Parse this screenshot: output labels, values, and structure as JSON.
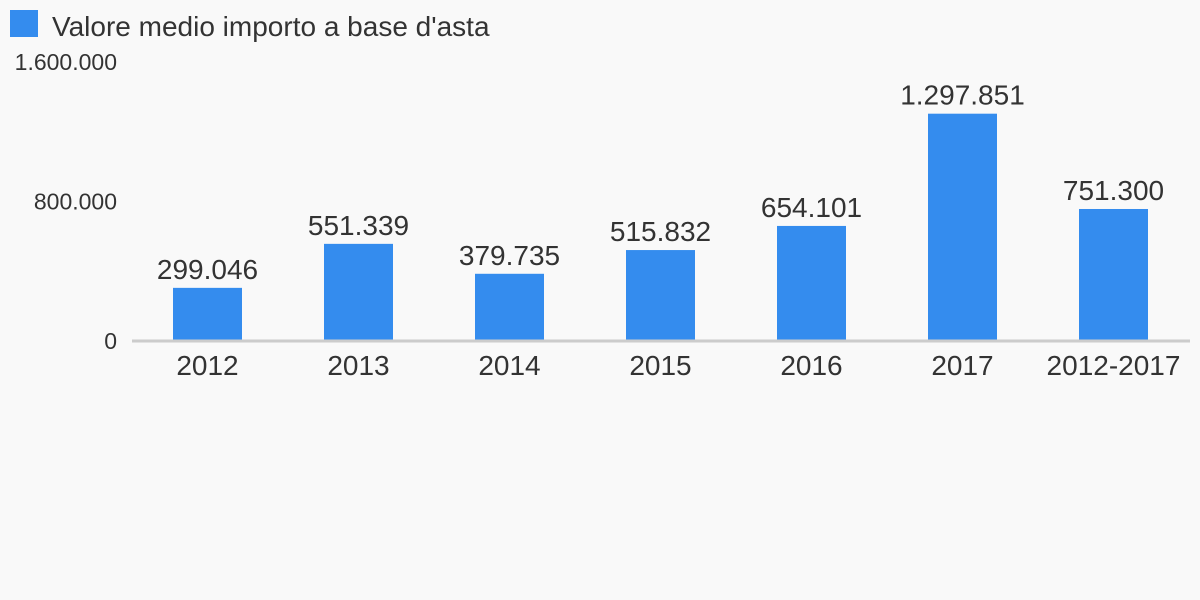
{
  "chart_data": {
    "type": "bar",
    "categories": [
      "2012",
      "2013",
      "2014",
      "2015",
      "2016",
      "2017",
      "2012-2017"
    ],
    "series": [
      {
        "name": "Valore medio importo a base d'asta",
        "values": [
          299046,
          551339,
          379735,
          515832,
          654101,
          1297851,
          751300
        ],
        "value_labels": [
          "299.046",
          "551.339",
          "379.735",
          "515.832",
          "654.101",
          "1.297.851",
          "751.300"
        ],
        "color": "#348cee"
      }
    ],
    "y_ticks": [
      0,
      800000,
      1600000
    ],
    "y_tick_labels": [
      "0",
      "800.000",
      "1.600.000"
    ],
    "ylim": [
      0,
      1600000
    ],
    "legend_position": "top-left",
    "grid": false,
    "axis_color": "#cccccc"
  }
}
